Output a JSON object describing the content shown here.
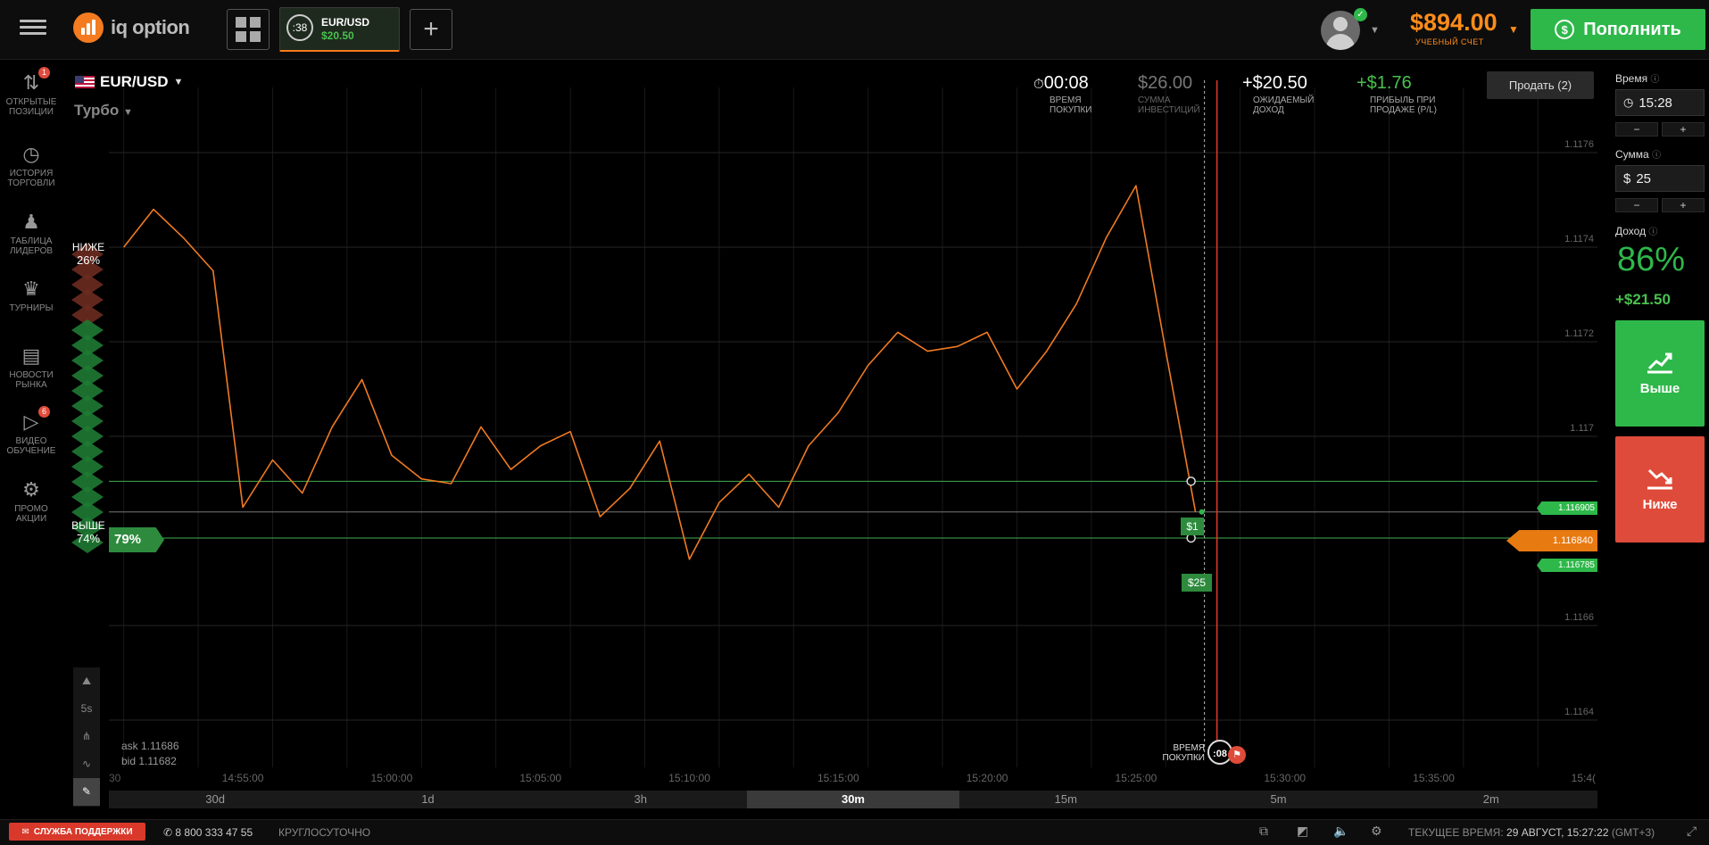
{
  "topbar": {
    "logo_text": "iq option",
    "asset_tab": {
      "timer": ":38",
      "pair": "EUR/USD",
      "value": "$20.50"
    },
    "add_tab": "+",
    "balance": "$894.00",
    "balance_label": "УЧЕБНЫЙ СЧЕТ",
    "deposit": "Пополнить"
  },
  "sidebar": [
    {
      "label": "ОТКРЫТЫЕ ПОЗИЦИИ",
      "icon": "updown-arrows-icon",
      "badge": "1"
    },
    {
      "label": "ИСТОРИЯ ТОРГОВЛИ",
      "icon": "history-clock-icon",
      "badge": ""
    },
    {
      "label": "ТАБЛИЦА ЛИДЕРОВ",
      "icon": "leaderboard-icon",
      "badge": ""
    },
    {
      "label": "ТУРНИРЫ",
      "icon": "trophy-icon",
      "badge": ""
    },
    {
      "label": "НОВОСТИ РЫНКА",
      "icon": "news-icon",
      "badge": ""
    },
    {
      "label": "ВИДЕО ОБУЧЕНИЕ",
      "icon": "play-icon",
      "badge": "6"
    },
    {
      "label": "ПРОМО АКЦИИ",
      "icon": "promo-gear-icon",
      "badge": ""
    }
  ],
  "chart": {
    "pair": "EUR/USD",
    "mode": "Турбо",
    "stats": {
      "buy_time": "00:08",
      "buy_time_label": "ВРЕМЯ ПОКУПКИ",
      "investment": "$26.00",
      "investment_label": "СУММА ИНВЕСТИЦИЙ",
      "expected": "+$20.50",
      "expected_label": "ОЖИДАЕМЫЙ ДОХОД",
      "pl": "+$1.76",
      "pl_label": "ПРИБЫЛЬ ПРИ ПРОДАЖЕ (P/L)"
    },
    "sell_button": "Продать (2)",
    "sentiment": {
      "down_label": "НИЖЕ",
      "down_pct": "26%",
      "up_label": "ВЫШЕ",
      "up_pct": "74%",
      "payout": "79%"
    },
    "price_levels": [
      "1.1176",
      "1.1174",
      "1.1172",
      "1.117",
      "1.1166",
      "1.1164"
    ],
    "level_tags": {
      "upper": "1.116905",
      "current": "1.116840",
      "lower": "1.116785"
    },
    "deal_tags": {
      "deal1": "$1",
      "deal2": "$25"
    },
    "time_labels": [
      "14:55:00",
      "15:00:00",
      "15:05:00",
      "15:10:00",
      "15:15:00",
      "15:20:00",
      "15:25:00",
      "15:30:00",
      "15:35:00"
    ],
    "time_edge_left": "30",
    "time_edge_right": "15:4(",
    "purchase_marker": {
      "label": "ВРЕМЯ ПОКУПКИ",
      "timer": ":08"
    },
    "ask": "ask 1.11686",
    "bid": "bid 1.11682",
    "timeframes": [
      "30d",
      "1d",
      "3h",
      "30m",
      "15m",
      "5m",
      "2m"
    ],
    "active_timeframe": "30m",
    "tools": [
      "area-chart-icon",
      "5s",
      "candles-icon",
      "indicators-icon",
      "pencil-icon"
    ],
    "line_color": "#f07a22"
  },
  "chart_data": {
    "type": "line",
    "title": "",
    "xlabel": "",
    "ylabel": "",
    "x": [
      "14:51",
      "14:52",
      "14:53",
      "14:54",
      "14:55",
      "14:56",
      "14:57",
      "14:58",
      "14:59",
      "15:00",
      "15:01",
      "15:02",
      "15:03",
      "15:04",
      "15:05",
      "15:06",
      "15:07",
      "15:08",
      "15:09",
      "15:10",
      "15:11",
      "15:12",
      "15:13",
      "15:14",
      "15:15",
      "15:16",
      "15:17",
      "15:18",
      "15:19",
      "15:20",
      "15:21",
      "15:22",
      "15:23",
      "15:24",
      "15:25",
      "15:26",
      "15:27"
    ],
    "y": [
      1.1174,
      1.11748,
      1.11742,
      1.11735,
      1.11685,
      1.11695,
      1.11688,
      1.11702,
      1.11712,
      1.11696,
      1.11691,
      1.1169,
      1.11702,
      1.11693,
      1.11698,
      1.11701,
      1.11683,
      1.11689,
      1.11699,
      1.11674,
      1.11686,
      1.11692,
      1.11685,
      1.11698,
      1.11705,
      1.11715,
      1.11722,
      1.11718,
      1.11719,
      1.11722,
      1.1171,
      1.11718,
      1.11728,
      1.11742,
      1.11753,
      1.11718,
      1.11684
    ],
    "ylim": [
      1.1163,
      1.1177
    ],
    "series": [
      {
        "values": [
          1.1174,
          1.11748,
          1.11742,
          1.11735,
          1.11685,
          1.11695,
          1.11688,
          1.11702,
          1.11712,
          1.11696,
          1.11691,
          1.1169,
          1.11702,
          1.11693,
          1.11698,
          1.11701,
          1.11683,
          1.11689,
          1.11699,
          1.11674,
          1.11686,
          1.11692,
          1.11685,
          1.11698,
          1.11705,
          1.11715,
          1.11722,
          1.11718,
          1.11719,
          1.11722,
          1.1171,
          1.11718,
          1.11728,
          1.11742,
          1.11753,
          1.11718,
          1.11684
        ]
      }
    ]
  },
  "right_panel": {
    "time_label": "Время",
    "time_value": "15:28",
    "amount_label": "Сумма",
    "amount_currency": "$",
    "amount_value": "25",
    "minus": "−",
    "plus": "+",
    "profit_label": "Доход",
    "profit_pct": "86%",
    "profit_amount": "+$21.50",
    "up_label": "Выше",
    "down_label": "Ниже"
  },
  "bottombar": {
    "support": "СЛУЖБА ПОДДЕРЖКИ",
    "phone": "8 800 333 47 55",
    "phone_note": "КРУГЛОСУТОЧНО",
    "time_label": "ТЕКУЩЕЕ ВРЕМЯ:",
    "time_value": "29 АВГУСТ, 15:27:22",
    "tz": "(GMT+3)"
  }
}
